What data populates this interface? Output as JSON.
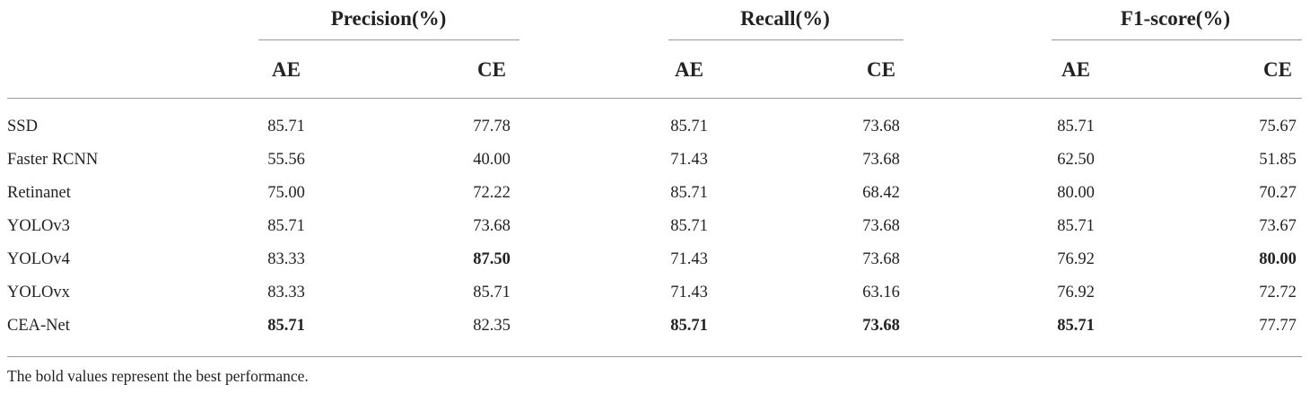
{
  "table": {
    "groups": [
      "Precision(%)",
      "Recall(%)",
      "F1-score(%)"
    ],
    "subheaders": [
      "AE",
      "CE",
      "AE",
      "CE",
      "AE",
      "CE"
    ],
    "rows": [
      {
        "model": "SSD",
        "values": [
          "85.71",
          "77.78",
          "85.71",
          "73.68",
          "85.71",
          "75.67"
        ],
        "bold": [
          false,
          false,
          false,
          false,
          false,
          false
        ]
      },
      {
        "model": "Faster RCNN",
        "values": [
          "55.56",
          "40.00",
          "71.43",
          "73.68",
          "62.50",
          "51.85"
        ],
        "bold": [
          false,
          false,
          false,
          false,
          false,
          false
        ]
      },
      {
        "model": "Retinanet",
        "values": [
          "75.00",
          "72.22",
          "85.71",
          "68.42",
          "80.00",
          "70.27"
        ],
        "bold": [
          false,
          false,
          false,
          false,
          false,
          false
        ]
      },
      {
        "model": "YOLOv3",
        "values": [
          "85.71",
          "73.68",
          "85.71",
          "73.68",
          "85.71",
          "73.67"
        ],
        "bold": [
          false,
          false,
          false,
          false,
          false,
          false
        ]
      },
      {
        "model": "YOLOv4",
        "values": [
          "83.33",
          "87.50",
          "71.43",
          "73.68",
          "76.92",
          "80.00"
        ],
        "bold": [
          false,
          true,
          false,
          false,
          false,
          true
        ]
      },
      {
        "model": "YOLOvx",
        "values": [
          "83.33",
          "85.71",
          "71.43",
          "63.16",
          "76.92",
          "72.72"
        ],
        "bold": [
          false,
          false,
          false,
          false,
          false,
          false
        ]
      },
      {
        "model": "CEA-Net",
        "values": [
          "85.71",
          "82.35",
          "85.71",
          "73.68",
          "85.71",
          "77.77"
        ],
        "bold": [
          true,
          false,
          true,
          true,
          true,
          false
        ]
      }
    ],
    "footnote": "The bold values represent the best performance."
  }
}
